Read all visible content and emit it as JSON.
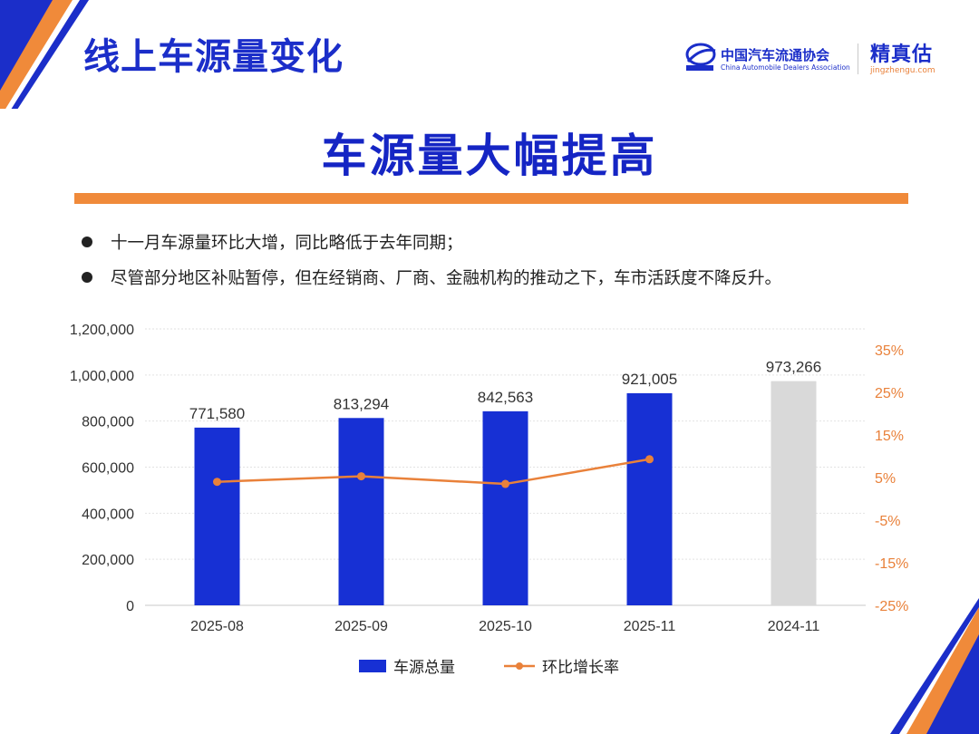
{
  "header": {
    "page_title": "线上车源量变化",
    "logo_cada_cn": "中国汽车流通协会",
    "logo_cada_en": "China Automobile Dealers Association",
    "logo_jzg_cn": "精真估",
    "logo_jzg_en": "jingzhengu.com"
  },
  "headline": "车源量大幅提高",
  "bullets": [
    "十一月车源量环比大增，同比略低于去年同期；",
    "尽管部分地区补贴暂停，但在经销商、厂商、金融机构的推动之下，车市活跃度不降反升。"
  ],
  "colors": {
    "brand_blue": "#1b2ec9",
    "bar_blue": "#1730d4",
    "bar_gray": "#d9d9d9",
    "line_orange": "#e9813a",
    "accent_rule": "#f08a3a"
  },
  "chart_data": {
    "type": "bar",
    "categories": [
      "2025-08",
      "2025-09",
      "2025-10",
      "2025-11",
      "2024-11"
    ],
    "series": [
      {
        "name": "车源总量",
        "type": "bar",
        "axis": "left",
        "values": [
          771580,
          813294,
          842563,
          921005,
          973266
        ],
        "data_labels": [
          "771,580",
          "813,294",
          "842,563",
          "921,005",
          "973,266"
        ],
        "colors": [
          "#1730d4",
          "#1730d4",
          "#1730d4",
          "#1730d4",
          "#d9d9d9"
        ]
      },
      {
        "name": "环比增长率",
        "type": "line",
        "axis": "right",
        "values": [
          4.0,
          5.3,
          3.5,
          9.3,
          null
        ],
        "color": "#e9813a"
      }
    ],
    "y_left": {
      "min": 0,
      "max": 1200000,
      "ticks": [
        0,
        200000,
        400000,
        600000,
        800000,
        1000000,
        1200000
      ],
      "tick_labels": [
        "0",
        "200,000",
        "400,000",
        "600,000",
        "800,000",
        "1,000,000",
        "1,200,000"
      ]
    },
    "y_right": {
      "min": -25,
      "max": 35,
      "ticks": [
        -25,
        -15,
        -5,
        5,
        15,
        25,
        35
      ],
      "tick_labels": [
        "-25%",
        "-15%",
        "-5%",
        "5%",
        "15%",
        "25%",
        "35%"
      ]
    },
    "grid": true,
    "legend": {
      "position": "bottom",
      "items": [
        "车源总量",
        "环比增长率"
      ]
    }
  }
}
